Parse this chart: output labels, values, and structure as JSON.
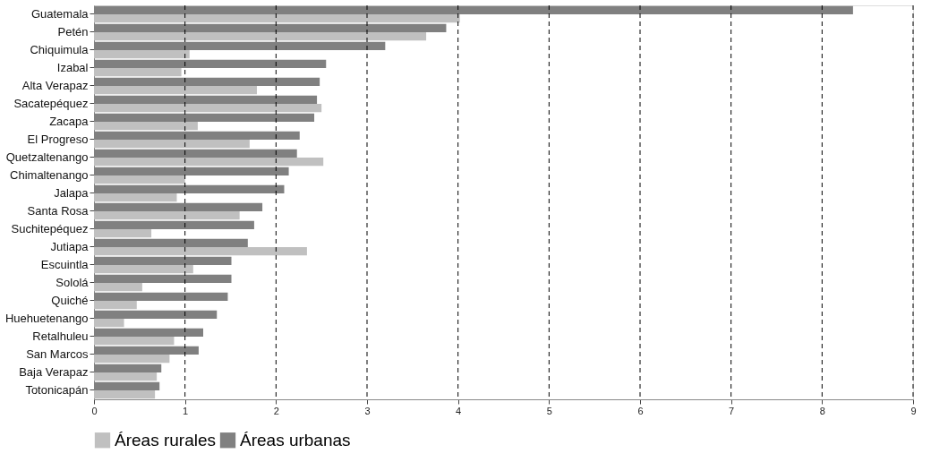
{
  "chart_data": {
    "type": "bar",
    "orientation": "horizontal",
    "categories": [
      "Guatemala",
      "Petén",
      "Chiquimula",
      "Izabal",
      "Alta Verapaz",
      "Sacatepéquez",
      "Zacapa",
      "El Progreso",
      "Quetzaltenango",
      "Chimaltenango",
      "Jalapa",
      "Santa Rosa",
      "Suchitepéquez",
      "Jutiapa",
      "Escuintla",
      "Sololá",
      "Quiché",
      "Huehuetenango",
      "Retalhuleu",
      "San Marcos",
      "Baja Verapaz",
      "Totonicapán"
    ],
    "series": [
      {
        "name": "Áreas rurales",
        "color": "#c0c0c0",
        "values": [
          4.02,
          3.65,
          1.05,
          0.96,
          1.79,
          2.5,
          1.14,
          1.71,
          2.52,
          1.0,
          0.91,
          1.6,
          0.63,
          2.34,
          1.09,
          0.53,
          0.47,
          0.33,
          0.88,
          0.83,
          0.69,
          0.67
        ]
      },
      {
        "name": "Áreas urbanas",
        "color": "#808080",
        "values": [
          8.34,
          3.87,
          3.2,
          2.55,
          2.48,
          2.45,
          2.42,
          2.26,
          2.23,
          2.14,
          2.09,
          1.85,
          1.76,
          1.69,
          1.51,
          1.51,
          1.47,
          1.35,
          1.2,
          1.15,
          0.74,
          0.72
        ]
      }
    ],
    "xlim": [
      0,
      9
    ],
    "xticks": [
      0,
      1,
      2,
      3,
      4,
      5,
      6,
      7,
      8,
      9
    ],
    "grid": "x",
    "legend": "bottom"
  }
}
